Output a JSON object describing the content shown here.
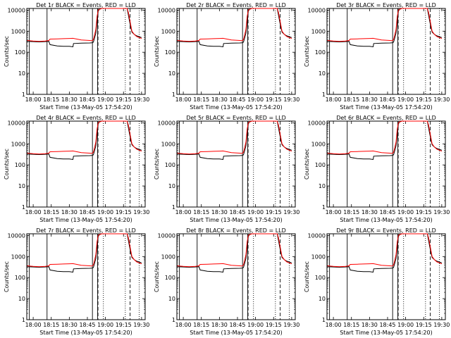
{
  "chart_data": {
    "type": "line",
    "grid": false,
    "shared": {
      "x_tick_labels": [
        "18:00",
        "18:15",
        "18:30",
        "18:45",
        "19:00",
        "19:15",
        "19:30"
      ],
      "x_ticks_min": [
        0,
        15,
        30,
        45,
        60,
        75,
        90
      ],
      "xlim_min": [
        -5.33,
        93
      ],
      "ylabel": "Counts/sec",
      "xlabel": "Start Time (13-May-05 17:54:20)",
      "y_scale": "log",
      "ylim": [
        1,
        12000
      ],
      "y_tick_labels": [
        "1",
        "10",
        "100",
        "1000",
        "10000"
      ],
      "y_tick_values": [
        1,
        10,
        100,
        1000,
        10000
      ],
      "vlines_solid_min": [
        -3.2,
        11.5,
        49.2,
        53.5
      ],
      "vlines_dotted_min": [
        58.3,
        76.5,
        88
      ],
      "vlines_dashed_min": [
        53.8,
        80.5
      ],
      "series_colors": {
        "events": "#000000",
        "lld": "#ff0000"
      }
    },
    "panels": [
      {
        "title": "Det 1r BLACK = Events, RED = LLD"
      },
      {
        "title": "Det 2r BLACK = Events, RED = LLD"
      },
      {
        "title": "Det 3r BLACK = Events, RED = LLD"
      },
      {
        "title": "Det 4r BLACK = Events, RED = LLD"
      },
      {
        "title": "Det 5r BLACK = Events, RED = LLD"
      },
      {
        "title": "Det 6r BLACK = Events, RED = LLD"
      },
      {
        "title": "Det 7r BLACK = Events, RED = LLD"
      },
      {
        "title": "Det 8r BLACK = Events, RED = LLD"
      },
      {
        "title": "Det 9r BLACK = Events, RED = LLD"
      }
    ],
    "series": [
      {
        "points": [
          [
            -5,
            330
          ],
          [
            0,
            320
          ],
          [
            5,
            310
          ],
          [
            10,
            320
          ],
          [
            13,
            330
          ],
          [
            14,
            230
          ],
          [
            20,
            200
          ],
          [
            25,
            190
          ],
          [
            30,
            190
          ],
          [
            33,
            180
          ],
          [
            33.5,
            260
          ],
          [
            40,
            270
          ],
          [
            47,
            275
          ],
          [
            49,
            280
          ],
          [
            50,
            300
          ],
          [
            52,
            800
          ],
          [
            53,
            3000
          ],
          [
            54,
            9000
          ],
          [
            55,
            11000
          ],
          [
            57,
            12000
          ],
          [
            60,
            12000
          ],
          [
            62,
            12000
          ],
          [
            70,
            12000
          ],
          [
            75,
            12000
          ],
          [
            78,
            12000
          ],
          [
            79,
            6000
          ],
          [
            80,
            3000
          ],
          [
            81,
            1500
          ],
          [
            82,
            900
          ],
          [
            84,
            700
          ],
          [
            86,
            600
          ],
          [
            90,
            500
          ]
        ]
      },
      {
        "points": [
          [
            -5,
            360
          ],
          [
            0,
            340
          ],
          [
            5,
            330
          ],
          [
            10,
            340
          ],
          [
            13,
            360
          ],
          [
            14,
            420
          ],
          [
            20,
            430
          ],
          [
            25,
            440
          ],
          [
            30,
            450
          ],
          [
            33,
            460
          ],
          [
            40,
            380
          ],
          [
            47,
            360
          ],
          [
            49,
            350
          ],
          [
            50,
            400
          ],
          [
            52,
            1200
          ],
          [
            53,
            5000
          ],
          [
            54,
            10000
          ],
          [
            55,
            11000
          ],
          [
            57,
            12000
          ],
          [
            60,
            12000
          ],
          [
            62,
            12000
          ],
          [
            70,
            12000
          ],
          [
            75,
            12000
          ],
          [
            78,
            12000
          ],
          [
            79,
            8000
          ],
          [
            80,
            4000
          ],
          [
            81,
            2000
          ],
          [
            82,
            1000
          ],
          [
            84,
            700
          ],
          [
            86,
            550
          ],
          [
            90,
            450
          ]
        ]
      }
    ]
  }
}
